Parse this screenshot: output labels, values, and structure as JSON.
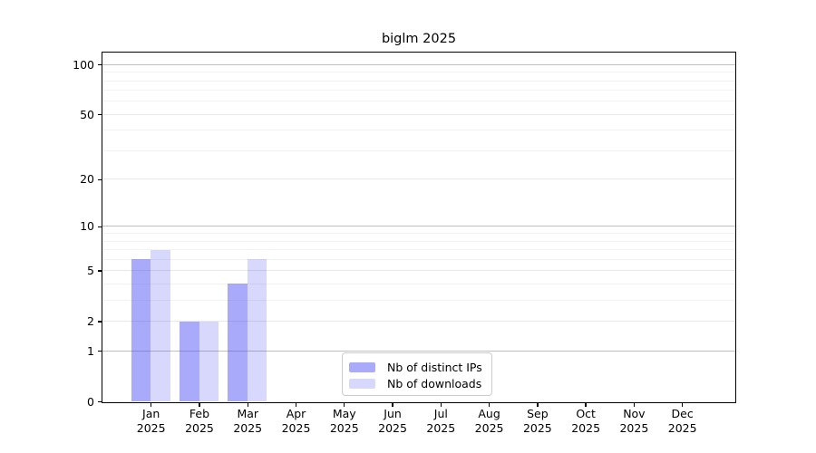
{
  "title": "biglm 2025",
  "legend": {
    "items": [
      {
        "label": "Nb of distinct IPs",
        "color_key": "ips_bar"
      },
      {
        "label": "Nb of downloads",
        "color_key": "downloads_bar"
      }
    ]
  },
  "colors": {
    "ips_bar": "rgba(62,62,245,0.44)",
    "downloads_bar": "rgba(62,62,245,0.20)",
    "grid_major": "#c0c0c0",
    "grid_mid": "#e7e7e7",
    "grid_minor": "#f2f2f2",
    "spine": "#000000"
  },
  "chart_data": {
    "type": "bar",
    "title": "biglm 2025",
    "categories": [
      "Jan",
      "Feb",
      "Mar",
      "Apr",
      "May",
      "Jun",
      "Jul",
      "Aug",
      "Sep",
      "Oct",
      "Nov",
      "Dec"
    ],
    "year_label": "2025",
    "series": [
      {
        "name": "Nb of distinct IPs",
        "values": [
          6,
          2,
          4,
          0,
          0,
          0,
          0,
          0,
          0,
          0,
          0,
          0
        ]
      },
      {
        "name": "Nb of downloads",
        "values": [
          7,
          2,
          6,
          0,
          0,
          0,
          0,
          0,
          0,
          0,
          0,
          0
        ]
      }
    ],
    "xlabel": "",
    "ylabel": "",
    "yscale": "log1p",
    "ylim": [
      0,
      118
    ],
    "yticks": [
      0,
      1,
      2,
      5,
      10,
      20,
      50,
      100
    ],
    "grid": {
      "major_at": [
        1,
        10,
        100
      ],
      "mid_at": [
        2,
        5,
        20,
        50
      ],
      "minor_at": [
        3,
        4,
        6,
        7,
        8,
        9,
        30,
        40,
        60,
        70,
        80,
        90
      ]
    },
    "legend_position": "lower center inside"
  }
}
